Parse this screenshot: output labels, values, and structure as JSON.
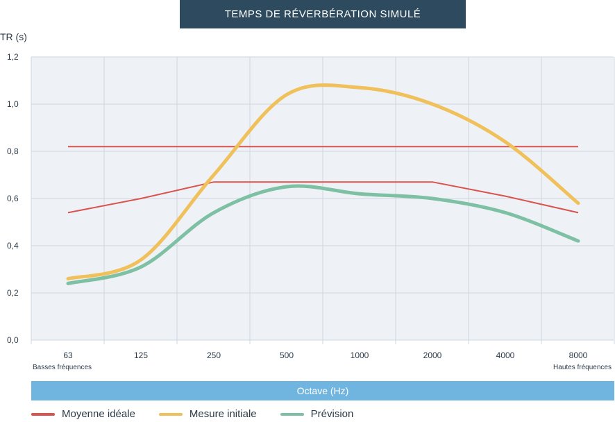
{
  "chart_data": {
    "type": "line",
    "title": "TEMPS DE RÉVERBÉRATION SIMULÉ",
    "ylabel": "TR (s)",
    "xlabel": "Octave (Hz)",
    "x_hint_left": "Basses fréquences",
    "x_hint_right": "Hautes fréquences",
    "categories": [
      "63",
      "125",
      "250",
      "500",
      "1000",
      "2000",
      "4000",
      "8000"
    ],
    "ylim": [
      0,
      1.2
    ],
    "yticks": [
      "0,0",
      "0,2",
      "0,4",
      "0,6",
      "0,8",
      "1,0",
      "1,2"
    ],
    "grid": true,
    "legend_position": "bottom",
    "series": [
      {
        "name": "Moyenne idéale",
        "color": "#d9534f",
        "style": "band",
        "upper": [
          0.82,
          0.82,
          0.82,
          0.82,
          0.82,
          0.82,
          0.82,
          0.82
        ],
        "lower": [
          0.54,
          0.6,
          0.67,
          0.67,
          0.67,
          0.67,
          0.61,
          0.54
        ]
      },
      {
        "name": "Mesure initiale",
        "color": "#f0c05a",
        "values": [
          0.26,
          0.34,
          0.7,
          1.04,
          1.07,
          1.0,
          0.84,
          0.58
        ]
      },
      {
        "name": "Prévision",
        "color": "#7ec0a3",
        "values": [
          0.24,
          0.31,
          0.54,
          0.65,
          0.62,
          0.6,
          0.54,
          0.42
        ]
      }
    ]
  }
}
